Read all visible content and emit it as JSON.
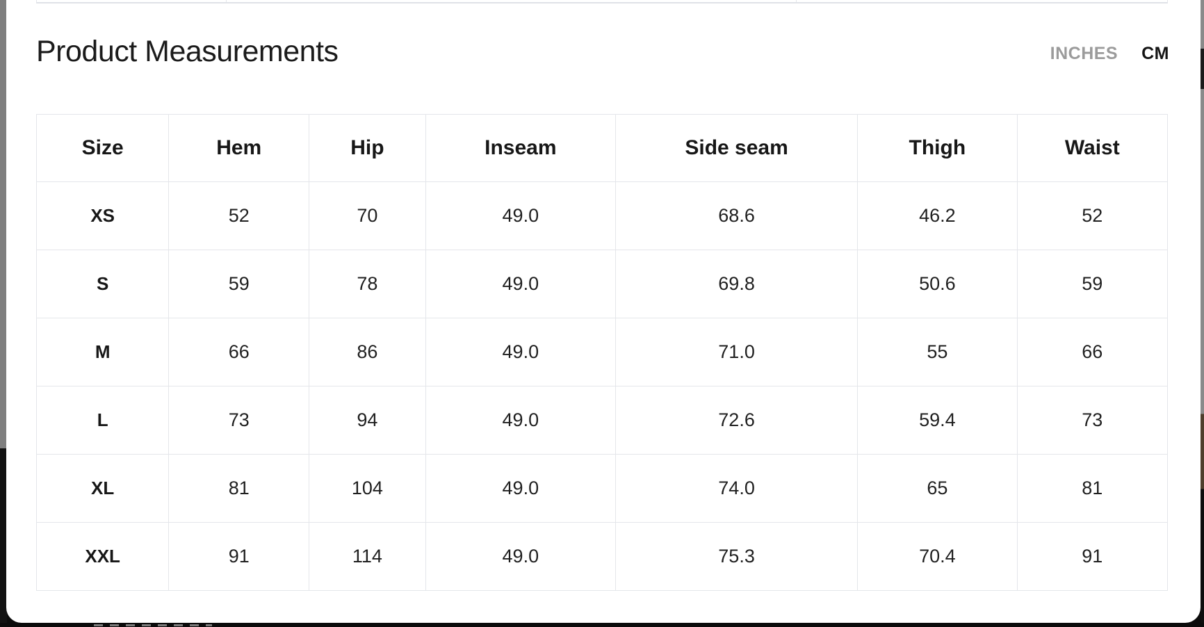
{
  "header": {
    "title": "Product Measurements"
  },
  "unit_toggle": {
    "options": [
      {
        "label": "INCHES",
        "selected": false
      },
      {
        "label": "CM",
        "selected": true
      }
    ],
    "selected_unit": "CM"
  },
  "table": {
    "columns": [
      "Size",
      "Hem",
      "Hip",
      "Inseam",
      "Side seam",
      "Thigh",
      "Waist"
    ],
    "rows": [
      [
        "XS",
        "52",
        "70",
        "49.0",
        "68.6",
        "46.2",
        "52"
      ],
      [
        "S",
        "59",
        "78",
        "49.0",
        "69.8",
        "50.6",
        "59"
      ],
      [
        "M",
        "66",
        "86",
        "49.0",
        "71.0",
        "55",
        "66"
      ],
      [
        "L",
        "73",
        "94",
        "49.0",
        "72.6",
        "59.4",
        "73"
      ],
      [
        "XL",
        "81",
        "104",
        "49.0",
        "74.0",
        "65",
        "81"
      ],
      [
        "XXL",
        "91",
        "114",
        "49.0",
        "75.3",
        "70.4",
        "91"
      ]
    ]
  },
  "colors": {
    "modal_background": "#ffffff",
    "table_border": "#e4e6ea",
    "title_text": "#1b1b1b",
    "inactive_unit_text": "#9b9b9b",
    "active_unit_text": "#141414",
    "underlay_gray": "#7f7f7f",
    "underlay_black": "#0b0b0b"
  }
}
